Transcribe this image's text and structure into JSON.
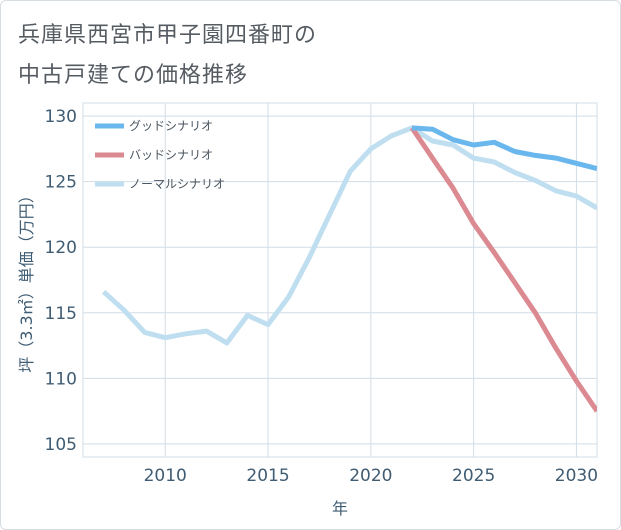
{
  "title": {
    "line1": "兵庫県西宮市甲子園四番町の",
    "line2": "中古戸建ての価格推移"
  },
  "colors": {
    "good": "#6ab7ee",
    "bad": "#dc8a92",
    "normal": "#bfdff0",
    "grid": "#d2dde6",
    "axis": "#3f5c73"
  },
  "chart_data": {
    "type": "line",
    "title": "兵庫県西宮市甲子園四番町の中古戸建ての価格推移",
    "xlabel": "年",
    "ylabel": "坪（3.3㎡）単価（万円）",
    "xlim": [
      2006,
      2031
    ],
    "ylim": [
      104,
      131
    ],
    "x_ticks": [
      2010,
      2015,
      2020,
      2025,
      2030
    ],
    "y_ticks": [
      105,
      110,
      115,
      120,
      125,
      130
    ],
    "grid": true,
    "legend_position": "top-left",
    "series": [
      {
        "name": "グッドシナリオ",
        "color": "#6ab7ee",
        "x": [
          2022,
          2023,
          2024,
          2025,
          2026,
          2027,
          2028,
          2029,
          2030,
          2031
        ],
        "y": [
          129.1,
          129.0,
          128.2,
          127.8,
          128.0,
          127.3,
          127.0,
          126.8,
          126.4,
          126.0
        ]
      },
      {
        "name": "バッドシナリオ",
        "color": "#dc8a92",
        "x": [
          2022,
          2023,
          2024,
          2025,
          2026,
          2027,
          2028,
          2029,
          2030,
          2031
        ],
        "y": [
          129.1,
          126.8,
          124.5,
          121.8,
          119.6,
          117.3,
          115.0,
          112.3,
          109.8,
          107.5
        ]
      },
      {
        "name": "ノーマルシナリオ",
        "color": "#bfdff0",
        "x": [
          2007,
          2008,
          2009,
          2010,
          2011,
          2012,
          2013,
          2014,
          2015,
          2016,
          2017,
          2018,
          2019,
          2020,
          2021,
          2022,
          2023,
          2024,
          2025,
          2026,
          2027,
          2028,
          2029,
          2030,
          2031
        ],
        "y": [
          116.6,
          115.2,
          113.5,
          113.1,
          113.4,
          113.6,
          112.7,
          114.8,
          114.1,
          116.2,
          119.2,
          122.5,
          125.8,
          127.5,
          128.5,
          129.1,
          128.1,
          127.8,
          126.8,
          126.5,
          125.7,
          125.1,
          124.3,
          123.9,
          123.0
        ]
      }
    ]
  }
}
